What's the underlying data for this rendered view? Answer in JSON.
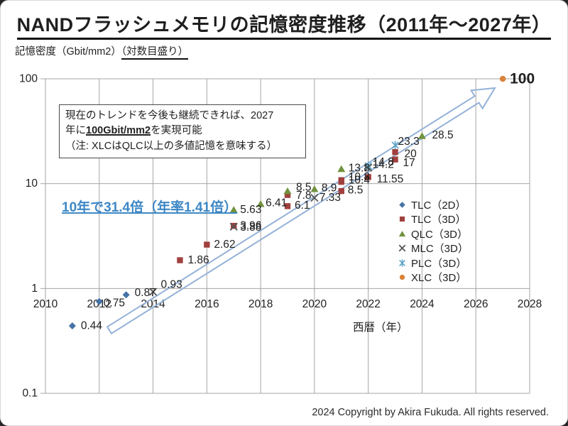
{
  "page": {
    "title": "NANDフラッシュメモリの記憶密度推移（2011年～2027年）",
    "copyright": "2024 Copyright by Akira Fukuda. All rights reserved."
  },
  "annotation_box": {
    "line1": "現在のトレンドを今後も継続できれば、2027",
    "line2_pre": "年に",
    "line2_em": "100Gbit/mm2",
    "line2_post": "を実現可能",
    "line3": "（注: XLCはQLC以上の多値記憶を意味する）"
  },
  "trend_note": "10年で31.4倍（年率1.41倍）",
  "colors": {
    "grid": "#A6A6A6",
    "arrow": "#94B2D8",
    "trend_note": "#3D87C5",
    "text": "#1F1F1F"
  },
  "chart_data": {
    "type": "scatter",
    "title": "NANDフラッシュメモリの記憶密度推移（2011年～2027年）",
    "x_axis": {
      "label": "西暦（年）",
      "range": [
        2010,
        2028
      ],
      "ticks": [
        2010,
        2012,
        2014,
        2016,
        2018,
        2020,
        2022,
        2024,
        2026,
        2028
      ]
    },
    "y_axis": {
      "label_prefix": "記憶密度（Gbit/mm2）",
      "scale_note": "（対数目盛り）",
      "scale": "log",
      "range": [
        0.1,
        100
      ],
      "ticks": [
        100,
        10,
        1,
        0.1
      ]
    },
    "grid": true,
    "legend_position": "right-inside",
    "series": [
      {
        "name": "TLC（2D）",
        "marker": "diamond",
        "color": "#4572A7",
        "points": [
          {
            "year": 2011,
            "value": 0.44,
            "label": "0.44",
            "dx": 12,
            "dy": 0
          },
          {
            "year": 2012,
            "value": 0.75,
            "label": "0.75",
            "dx": 6,
            "dy": 2
          },
          {
            "year": 2013,
            "value": 0.87,
            "label": "0.87",
            "dx": 12,
            "dy": -3
          }
        ]
      },
      {
        "name": "TLC（3D）",
        "marker": "square",
        "color": "#A0403E",
        "points": [
          {
            "year": 2015,
            "value": 1.86,
            "label": "1.86",
            "dx": 11,
            "dy": 0
          },
          {
            "year": 2016,
            "value": 2.62,
            "label": "2.62",
            "dx": 10,
            "dy": 0
          },
          {
            "year": 2017,
            "value": 3.96,
            "label": "3.96",
            "dx": 9,
            "dy": 0
          },
          {
            "year": 2019,
            "value": 6.1,
            "label": "6.1",
            "dx": 10,
            "dy": -1
          },
          {
            "year": 2019,
            "value": 7.8,
            "label": "7.8",
            "dx": 12,
            "dy": 1
          },
          {
            "year": 2021,
            "value": 8.5,
            "label": "8.5",
            "dx": 9,
            "dy": -1
          },
          {
            "year": 2021,
            "value": 10.8,
            "label": "10.8",
            "dx": 10,
            "dy": -4
          },
          {
            "year": 2021,
            "value": 10.4,
            "label": "10.4",
            "dx": 10,
            "dy": -2
          },
          {
            "year": 2022,
            "value": 11.55,
            "label": "11.55",
            "dx": 12,
            "dy": 3
          },
          {
            "year": 2023,
            "value": 20,
            "label": "20",
            "dx": 13,
            "dy": 3
          },
          {
            "year": 2023,
            "value": 17,
            "label": "17",
            "dx": 11,
            "dy": 5
          }
        ]
      },
      {
        "name": "QLC（3D）",
        "marker": "triangle",
        "color": "#71923E",
        "points": [
          {
            "year": 2017,
            "value": 5.63,
            "label": "5.63",
            "dx": 9,
            "dy": 0
          },
          {
            "year": 2018,
            "value": 6.41,
            "label": "6.41",
            "dx": 7,
            "dy": -1
          },
          {
            "year": 2019,
            "value": 8.5,
            "label": "8.5",
            "dx": 12,
            "dy": -5
          },
          {
            "year": 2020,
            "value": 8.9,
            "label": "8.9",
            "dx": 10,
            "dy": -1
          },
          {
            "year": 2021,
            "value": 13.8,
            "label": "13.8",
            "dx": 10,
            "dy": -1
          },
          {
            "year": 2024,
            "value": 28.5,
            "label": "28.5",
            "dx": 14,
            "dy": -1
          }
        ]
      },
      {
        "name": "MLC（3D）",
        "marker": "x",
        "color": "#555555",
        "points": [
          {
            "year": 2014,
            "value": 0.93,
            "label": "0.93",
            "dx": 11,
            "dy": -10
          },
          {
            "year": 2017,
            "value": 3.88,
            "label": "3.88",
            "dx": 9,
            "dy": 1
          },
          {
            "year": 2020,
            "value": 7.33,
            "label": "7.33",
            "dx": 7,
            "dy": 0
          },
          {
            "year": 2022,
            "value": 14.2,
            "label": "14.2",
            "dx": 6,
            "dy": -4
          }
        ]
      },
      {
        "name": "PLC（3D）",
        "marker": "star",
        "color": "#5FA5C6",
        "points": [
          {
            "year": 2022,
            "value": 14.8,
            "label": "14.8",
            "dx": 6,
            "dy": -5
          },
          {
            "year": 2023,
            "value": 23.3,
            "label": "23.3",
            "dx": 4,
            "dy": -5
          }
        ]
      },
      {
        "name": "XLC（3D）",
        "marker": "circle",
        "color": "#D9823A",
        "points": [
          {
            "year": 2027,
            "value": 100,
            "label": "100",
            "dx": 10,
            "dy": 0,
            "big": true
          }
        ]
      }
    ],
    "annotations": {
      "box_text": "現在のトレンドを今後も継続できれば、2027年に100Gbit/mm2を実現可能（注: XLCはQLC以上の多値記憶を意味する）",
      "trend_text": "10年で31.4倍（年率1.41倍）",
      "trend_arrow": "from (2012, 0.4) to (2027, 90)"
    }
  }
}
